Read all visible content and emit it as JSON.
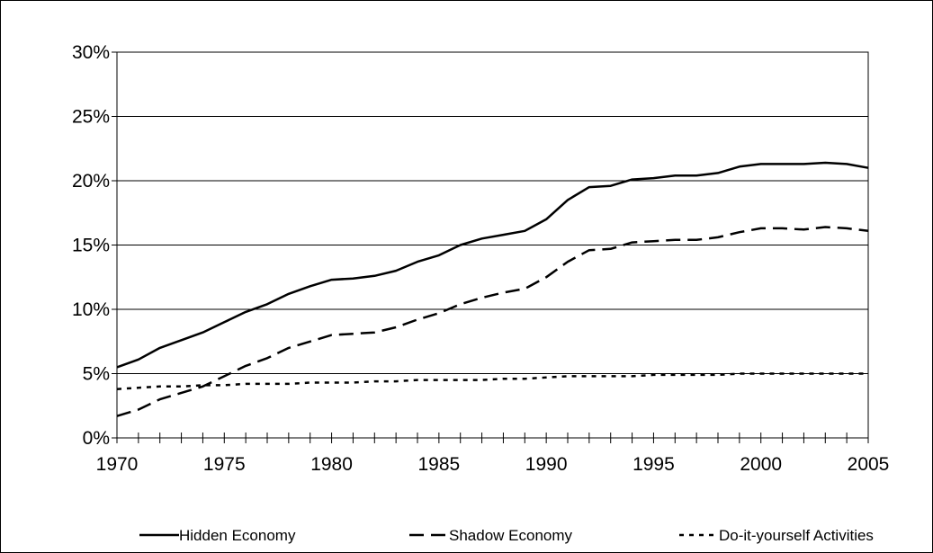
{
  "chart_data": {
    "type": "line",
    "title": "",
    "xlabel": "",
    "ylabel": "",
    "xlim": [
      1970,
      2005
    ],
    "ylim": [
      0,
      30
    ],
    "y_ticks": [
      0,
      5,
      10,
      15,
      20,
      25,
      30
    ],
    "y_tick_labels": [
      "0%",
      "5%",
      "10%",
      "15%",
      "20%",
      "25%",
      "30%"
    ],
    "x_ticks": [
      1970,
      1975,
      1980,
      1985,
      1990,
      1995,
      2000,
      2005
    ],
    "x_tick_labels": [
      "1970",
      "1975",
      "1980",
      "1985",
      "1990",
      "1995",
      "2000",
      "2005"
    ],
    "grid": "horizontal",
    "legend_position": "bottom",
    "x": [
      1970,
      1971,
      1972,
      1973,
      1974,
      1975,
      1976,
      1977,
      1978,
      1979,
      1980,
      1981,
      1982,
      1983,
      1984,
      1985,
      1986,
      1987,
      1988,
      1989,
      1990,
      1991,
      1992,
      1993,
      1994,
      1995,
      1996,
      1997,
      1998,
      1999,
      2000,
      2001,
      2002,
      2003,
      2004,
      2005
    ],
    "series": [
      {
        "name": "Hidden Economy",
        "style": "solid",
        "color": "#000000",
        "values": [
          5.5,
          6.1,
          7.0,
          7.6,
          8.2,
          9.0,
          9.8,
          10.4,
          11.2,
          11.8,
          12.3,
          12.4,
          12.6,
          13.0,
          13.7,
          14.2,
          15.0,
          15.5,
          15.8,
          16.1,
          17.0,
          18.5,
          19.5,
          19.6,
          20.1,
          20.2,
          20.4,
          20.4,
          20.6,
          21.1,
          21.3,
          21.3,
          21.3,
          21.4,
          21.3,
          21.0
        ]
      },
      {
        "name": "Shadow Economy",
        "style": "dashed",
        "color": "#000000",
        "values": [
          1.7,
          2.2,
          3.0,
          3.5,
          4.0,
          4.8,
          5.6,
          6.2,
          7.0,
          7.5,
          8.0,
          8.1,
          8.2,
          8.6,
          9.2,
          9.7,
          10.4,
          10.9,
          11.3,
          11.6,
          12.5,
          13.7,
          14.6,
          14.7,
          15.2,
          15.3,
          15.4,
          15.4,
          15.6,
          16.0,
          16.3,
          16.3,
          16.2,
          16.4,
          16.3,
          16.1
        ]
      },
      {
        "name": "Do-it-yourself Activities",
        "style": "dotted",
        "color": "#000000",
        "values": [
          3.8,
          3.9,
          4.0,
          4.0,
          4.1,
          4.1,
          4.2,
          4.2,
          4.2,
          4.3,
          4.3,
          4.3,
          4.4,
          4.4,
          4.5,
          4.5,
          4.5,
          4.5,
          4.6,
          4.6,
          4.7,
          4.8,
          4.8,
          4.8,
          4.8,
          4.9,
          4.9,
          4.9,
          4.9,
          5.0,
          5.0,
          5.0,
          5.0,
          5.0,
          5.0,
          5.0
        ]
      }
    ]
  }
}
